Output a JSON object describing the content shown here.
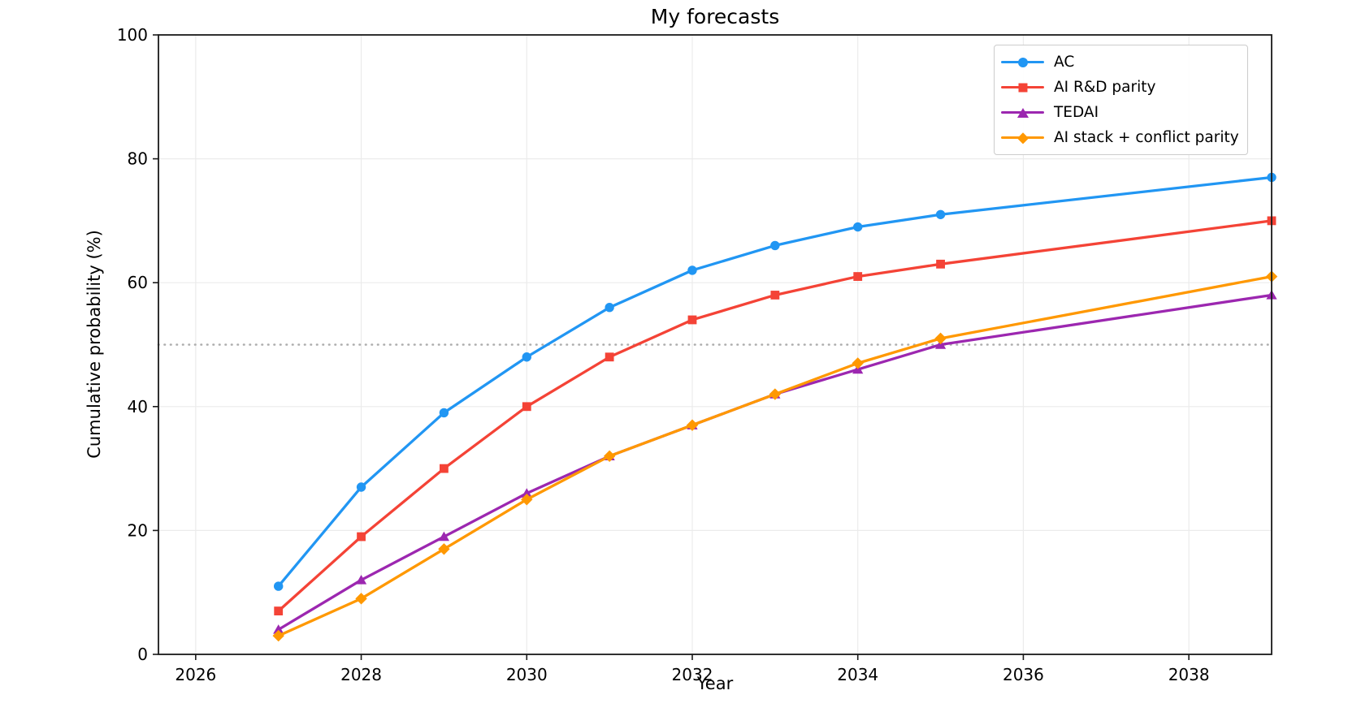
{
  "figure_title": "My forecasts",
  "chart_data": {
    "type": "line",
    "title": "My forecasts",
    "xlabel": "Year",
    "ylabel": "Cumulative probability (%)",
    "x": [
      2027,
      2028,
      2029,
      2030,
      2031,
      2032,
      2033,
      2034,
      2035,
      2039
    ],
    "series": [
      {
        "name": "AC",
        "color": "#2196F3",
        "marker": "circle",
        "values": [
          11,
          27,
          39,
          48,
          56,
          62,
          66,
          69,
          71,
          77
        ]
      },
      {
        "name": "AI R&D parity",
        "color": "#F44336",
        "marker": "square",
        "values": [
          7,
          19,
          30,
          40,
          48,
          54,
          58,
          61,
          63,
          70
        ]
      },
      {
        "name": "TEDAI",
        "color": "#9C27B0",
        "marker": "triangle",
        "values": [
          4,
          12,
          19,
          26,
          32,
          37,
          42,
          46,
          50,
          58
        ]
      },
      {
        "name": "AI stack + conflict parity",
        "color": "#FF9800",
        "marker": "diamond",
        "values": [
          3,
          9,
          17,
          25,
          32,
          37,
          42,
          47,
          51,
          61
        ]
      }
    ],
    "xlim": [
      2025.55,
      2039.0
    ],
    "ylim": [
      0,
      100
    ],
    "xticks": [
      2026,
      2028,
      2030,
      2032,
      2034,
      2036,
      2038
    ],
    "yticks": [
      0,
      20,
      40,
      60,
      80,
      100
    ],
    "grid": true,
    "grid_color": "#ebebeb",
    "reference_line": {
      "y": 50,
      "style": "dotted",
      "color": "#adadad"
    },
    "legend_position": "upper right",
    "spine_color": "#1a1a1a",
    "background": "#ffffff"
  }
}
